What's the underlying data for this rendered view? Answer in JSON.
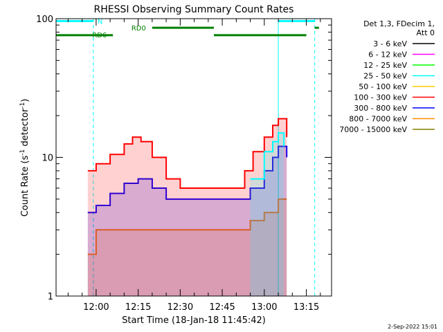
{
  "chart_data": {
    "type": "line",
    "title": "RHESSI Observing Summary Count Rates",
    "xlabel": "Start Time (18-Jan-18 11:45:42)",
    "ylabel": "Count Rate (s",
    "ylabel_sup": "-1",
    "ylabel_tail": " detector",
    "ylabel_sup2": "-1",
    "ylabel_end": ")",
    "y_scale": "log",
    "ylim": [
      1,
      100
    ],
    "xlim": [
      "11:45:42",
      "13:24:00"
    ],
    "x_ticks": [
      "12:00",
      "12:15",
      "12:30",
      "12:45",
      "13:00",
      "13:15"
    ],
    "y_ticks": [
      "1",
      "10",
      "100"
    ],
    "legend_title_1": "Det 1,3, FDecim 1,",
    "legend_title_2": "Att 0",
    "legend_placement": "right",
    "series": [
      {
        "name": "3 - 6 keV",
        "color": "#000000"
      },
      {
        "name": "6 - 12 keV",
        "color": "#ff00ff"
      },
      {
        "name": "12 - 25 keV",
        "color": "#00ff00"
      },
      {
        "name": "25 - 50 keV",
        "color": "#00ffff"
      },
      {
        "name": "50 - 100 keV",
        "color": "#ffc800"
      },
      {
        "name": "100 - 300 keV",
        "color": "#ff0000"
      },
      {
        "name": "300 - 800 keV",
        "color": "#0000ff"
      },
      {
        "name": "800 - 7000 keV",
        "color": "#ff8c00"
      },
      {
        "name": "7000 - 15000 keV",
        "color": "#808000"
      }
    ],
    "envelope_series": [
      {
        "name": "100 - 300 keV",
        "color": "#ff0000",
        "times": [
          "11:57",
          "12:00",
          "12:05",
          "12:10",
          "12:13",
          "12:16",
          "12:20",
          "12:25",
          "12:30",
          "12:35",
          "12:40",
          "12:45",
          "12:50",
          "12:53",
          "12:56",
          "13:00",
          "13:03",
          "13:05",
          "13:08"
        ],
        "values": [
          8,
          9,
          10.5,
          12.5,
          14,
          13,
          10,
          7,
          6,
          6,
          6,
          6,
          6,
          8,
          11,
          14,
          17,
          19,
          14
        ]
      },
      {
        "name": "300 - 800 keV",
        "color": "#0000ff",
        "times": [
          "11:57",
          "12:00",
          "12:05",
          "12:10",
          "12:15",
          "12:20",
          "12:25",
          "12:30",
          "12:35",
          "12:40",
          "12:45",
          "12:50",
          "12:55",
          "13:00",
          "13:03",
          "13:05",
          "13:08"
        ],
        "values": [
          4,
          4.5,
          5.5,
          6.5,
          7,
          6,
          5,
          5,
          5,
          5,
          5,
          5,
          6,
          8,
          10,
          12,
          10
        ]
      },
      {
        "name": "800 - 7000 keV",
        "color": "#ff8c00",
        "times": [
          "11:57",
          "12:00",
          "12:05",
          "12:10",
          "12:15",
          "12:20",
          "12:25",
          "12:30",
          "12:35",
          "12:40",
          "12:45",
          "12:50",
          "12:55",
          "13:00",
          "13:05",
          "13:08"
        ],
        "values": [
          2,
          3,
          3,
          3,
          3,
          3,
          3,
          3,
          3,
          3,
          3,
          3,
          3.5,
          4,
          5,
          5
        ]
      },
      {
        "name": "25 - 50 keV",
        "color": "#00ffff",
        "times": [
          "12:55",
          "13:00",
          "13:03",
          "13:05",
          "13:07"
        ],
        "values": [
          7,
          11,
          13,
          15,
          12
        ]
      }
    ],
    "segments": [
      {
        "label": "N",
        "color": "#00ffff",
        "y": 96,
        "start": "11:45:42",
        "end": "11:59:00"
      },
      {
        "label": "N",
        "color": "#00ffff",
        "y": 96,
        "start": "13:05:00",
        "end": "13:18:00"
      },
      {
        "label": "RD0",
        "color": "#008000",
        "y": 86,
        "start": "12:20:00",
        "end": "12:42:00"
      },
      {
        "label": "RD0",
        "color": "#008000",
        "y": 86,
        "start": "13:18:00",
        "end": "13:19:30"
      },
      {
        "label": "RD6",
        "color": "#008000",
        "y": 76,
        "start": "11:45:42",
        "end": "12:06:00"
      },
      {
        "label": "RD6",
        "color": "#008000",
        "y": 76,
        "start": "12:42:00",
        "end": "13:15:00"
      }
    ],
    "vertical_lines": [
      {
        "time": "11:45:42",
        "style": "solid",
        "color": "#00ffff"
      },
      {
        "time": "11:59:00",
        "style": "dashed",
        "color": "#00ffff"
      },
      {
        "time": "13:05:00",
        "style": "solid",
        "color": "#00ffff"
      },
      {
        "time": "13:18:00",
        "style": "dashed",
        "color": "#00ffff"
      }
    ],
    "footer_date": "2-Sep-2022 15:01"
  }
}
